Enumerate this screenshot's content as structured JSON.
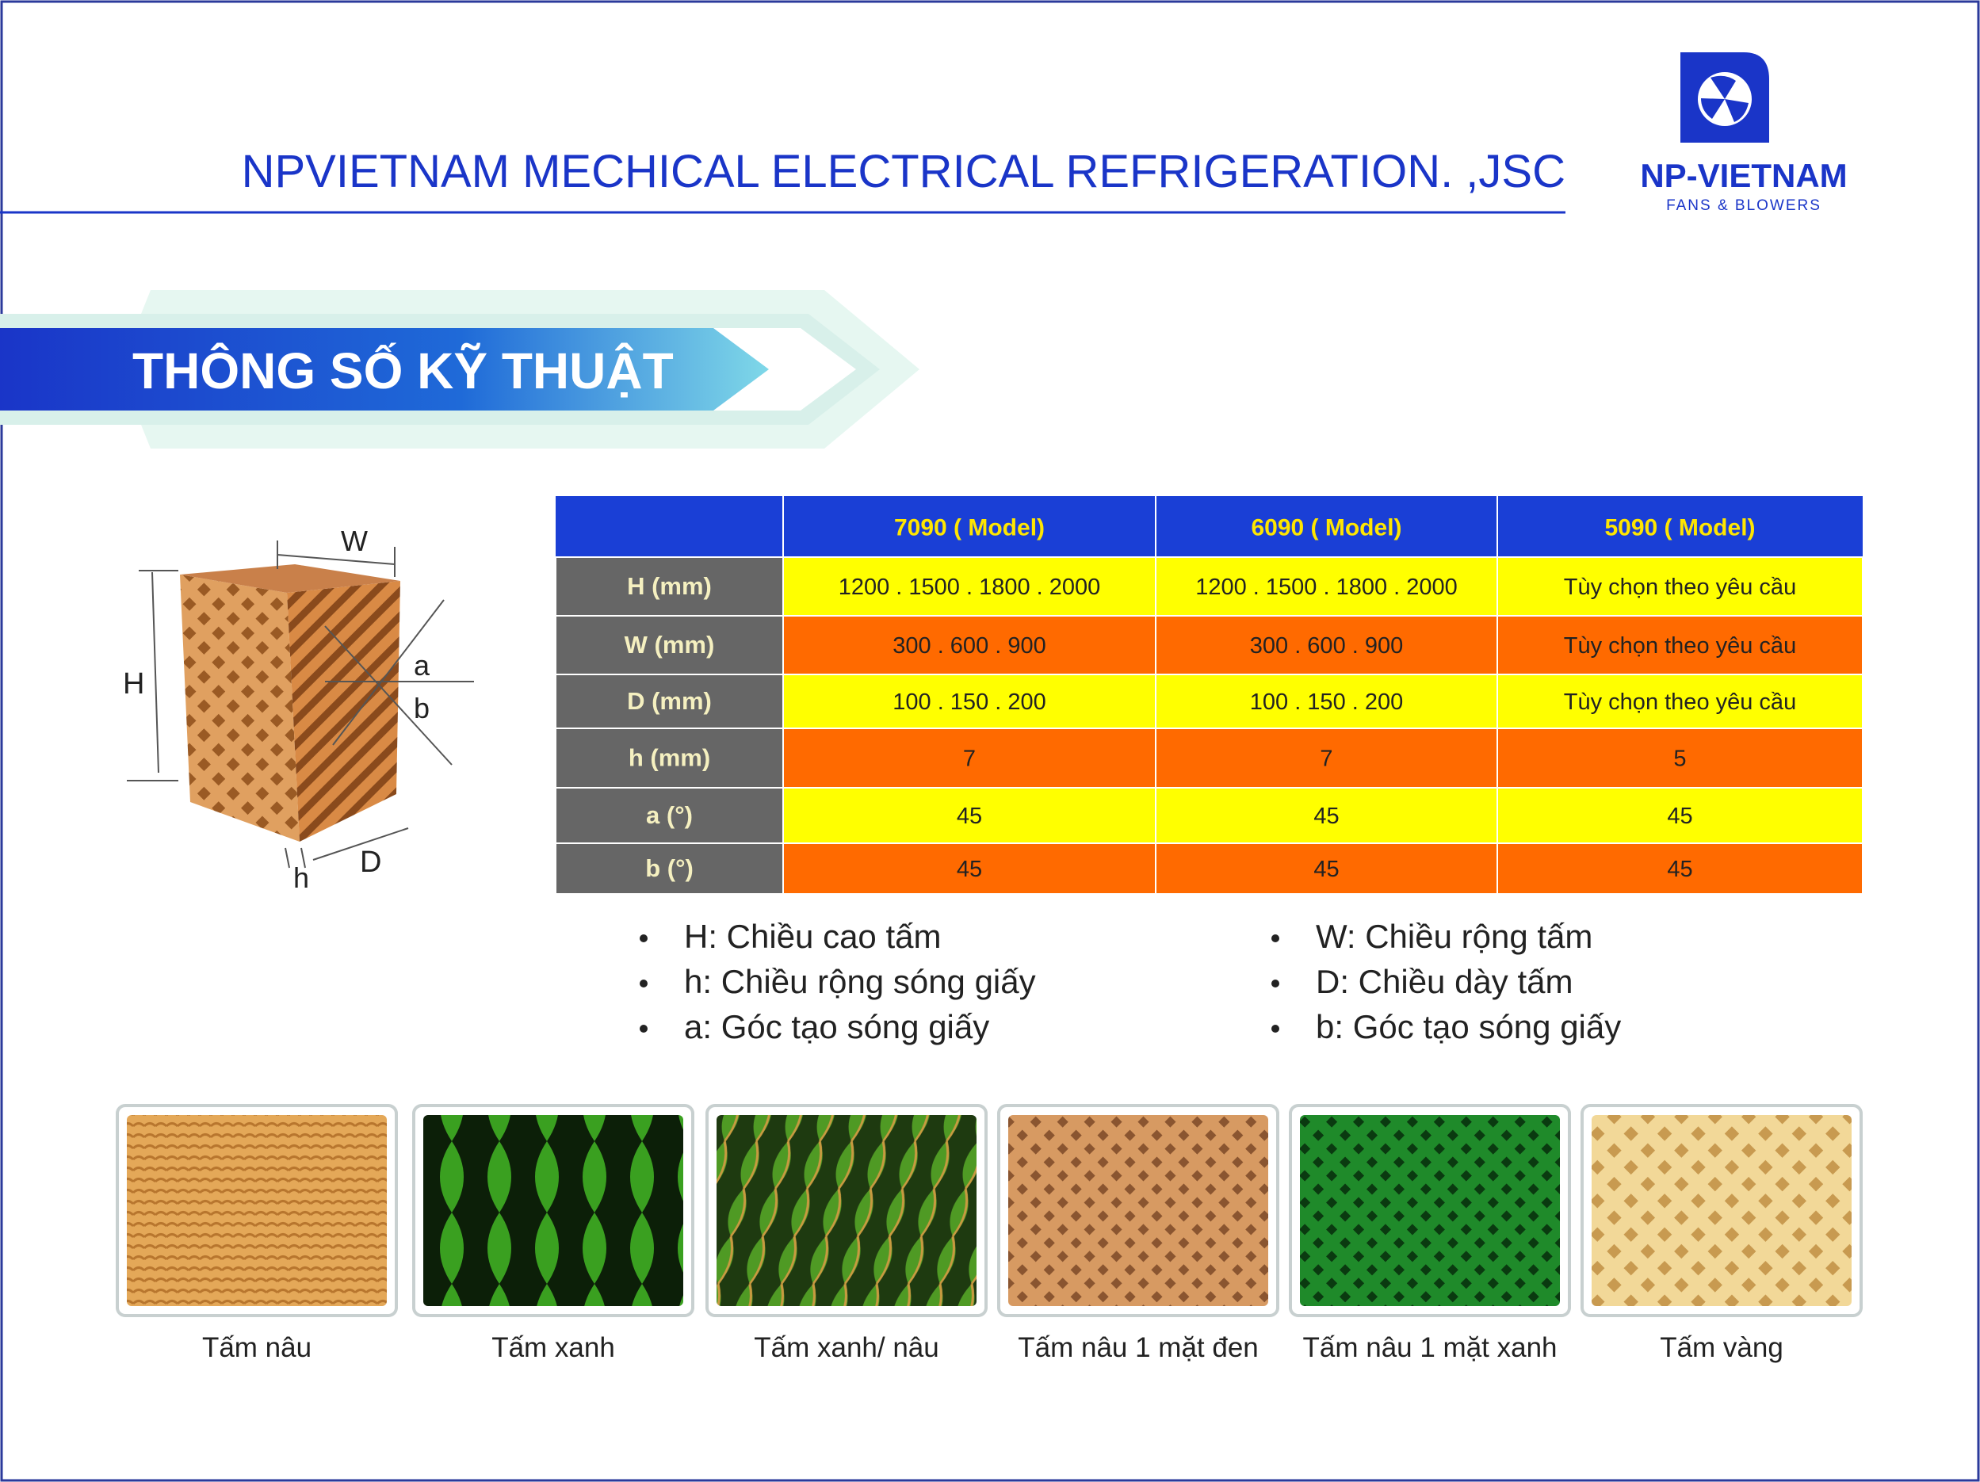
{
  "header": {
    "company": "NPVIETNAM MECHICAL ELECTRICAL REFRIGERATION. ,JSC"
  },
  "logo": {
    "name": "NP-VIETNAM",
    "tagline": "FANS & BLOWERS"
  },
  "banner": {
    "title": "THÔNG SỐ KỸ THUẬT"
  },
  "diagram": {
    "labels": {
      "W": "W",
      "H": "H",
      "a": "a",
      "b": "b",
      "h": "h",
      "D": "D"
    }
  },
  "table": {
    "header": [
      "7090 ( Model)",
      "6090 ( Model)",
      "5090 ( Model)"
    ],
    "rows": [
      {
        "label": "H (mm)",
        "cells": [
          "1200 . 1500 . 1800 . 2000",
          "1200 . 1500 . 1800 . 2000",
          "Tùy chọn theo yêu cầu"
        ]
      },
      {
        "label": "W (mm)",
        "cells": [
          "300 . 600 . 900",
          "300 . 600 . 900",
          "Tùy chọn theo yêu cầu"
        ]
      },
      {
        "label": "D (mm)",
        "cells": [
          "100 . 150 . 200",
          "100 . 150 . 200",
          "Tùy chọn theo yêu cầu"
        ]
      },
      {
        "label": "h (mm)",
        "cells": [
          "7",
          "7",
          "5"
        ]
      },
      {
        "label": "a (°)",
        "cells": [
          "45",
          "45",
          "45"
        ]
      },
      {
        "label": "b (°)",
        "cells": [
          "45",
          "45",
          "45"
        ]
      }
    ]
  },
  "legend": {
    "left": [
      "H: Chiều cao tấm",
      "h: Chiều rộng sóng giấy",
      "a: Góc tạo sóng giấy"
    ],
    "right": [
      "W: Chiều rộng tấm",
      "D: Chiều dày tấm",
      "b: Góc tạo sóng giấy"
    ]
  },
  "products": [
    "Tấm nâu",
    "Tấm xanh",
    "Tấm xanh/ nâu",
    "Tấm nâu 1 mặt đen",
    "Tấm nâu 1 mặt xanh",
    "Tấm vàng"
  ]
}
